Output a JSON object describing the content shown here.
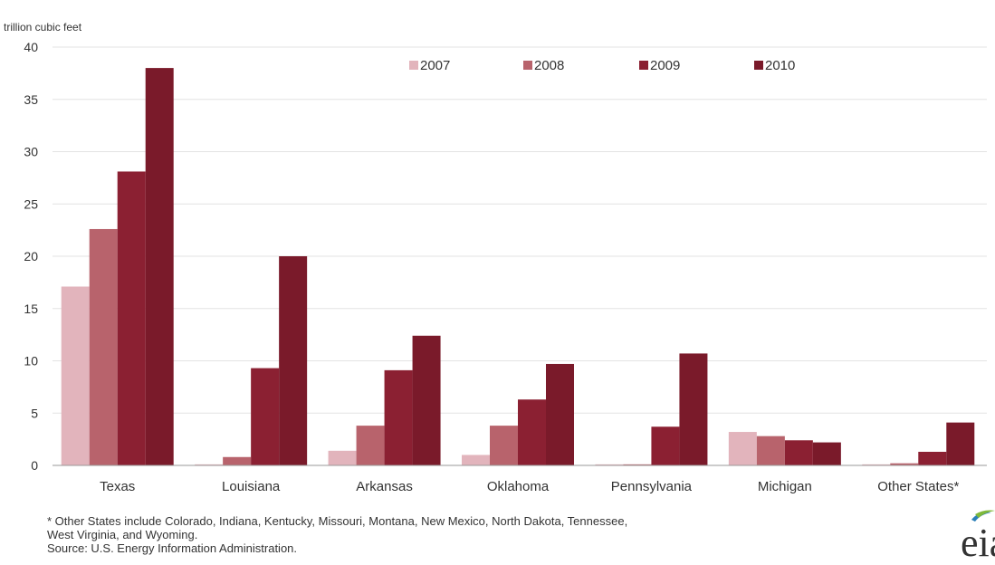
{
  "chart_data": {
    "type": "bar",
    "ylabel": "trillion cubic feet",
    "ylim": [
      0,
      40
    ],
    "yticks": [
      0,
      5,
      10,
      15,
      20,
      25,
      30,
      35,
      40
    ],
    "grid": true,
    "legend_position": "top",
    "categories": [
      "Texas",
      "Louisiana",
      "Arkansas",
      "Oklahoma",
      "Pennsylvania",
      "Michigan",
      "Other States*"
    ],
    "series": [
      {
        "name": "2007",
        "color": "#e2b4bc",
        "values": [
          17.1,
          0.1,
          1.4,
          1.0,
          0.1,
          3.2,
          0.1
        ]
      },
      {
        "name": "2008",
        "color": "#b8636c",
        "values": [
          22.6,
          0.8,
          3.8,
          3.8,
          0.1,
          2.8,
          0.2
        ]
      },
      {
        "name": "2009",
        "color": "#8b2032",
        "values": [
          28.1,
          9.3,
          9.1,
          6.3,
          3.7,
          2.4,
          1.3
        ]
      },
      {
        "name": "2010",
        "color": "#7a1a2a",
        "values": [
          38.0,
          20.0,
          12.4,
          9.7,
          10.7,
          2.2,
          4.1
        ]
      }
    ]
  },
  "footnote": {
    "line1": "* Other States include  Colorado, Indiana, Kentucky, Missouri, Montana, New Mexico, North Dakota, Tennessee,",
    "line2": "West Virginia, and Wyoming.",
    "source": "Source: U.S. Energy Information Administration."
  },
  "logo": {
    "text": "eia"
  }
}
